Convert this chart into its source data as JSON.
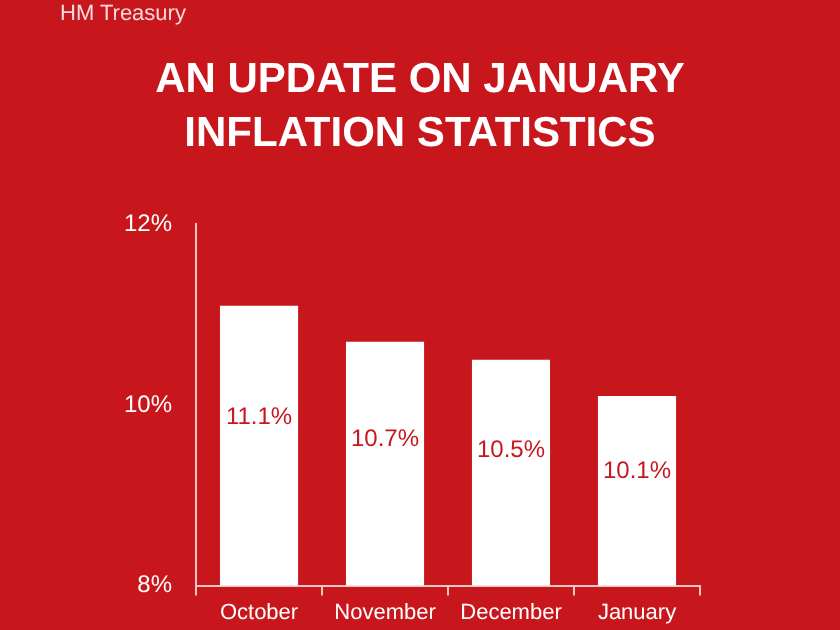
{
  "chart_data": {
    "type": "bar",
    "title": "AN UPDATE ON JANUARY INFLATION STATISTICS",
    "annotations": [
      "HM Treasury"
    ],
    "categories": [
      "October",
      "November",
      "December",
      "January"
    ],
    "values": [
      11.1,
      10.7,
      10.5,
      10.1
    ],
    "value_labels": [
      "11.1%",
      "10.7%",
      "10.5%",
      "10.1%"
    ],
    "color": "#ffffff",
    "ylim": [
      8,
      12
    ],
    "yticks": [
      {
        "value": 8,
        "label": "8%"
      },
      {
        "value": 10,
        "label": "10%"
      },
      {
        "value": 12,
        "label": "12%"
      }
    ],
    "grid": false,
    "legend": false
  }
}
